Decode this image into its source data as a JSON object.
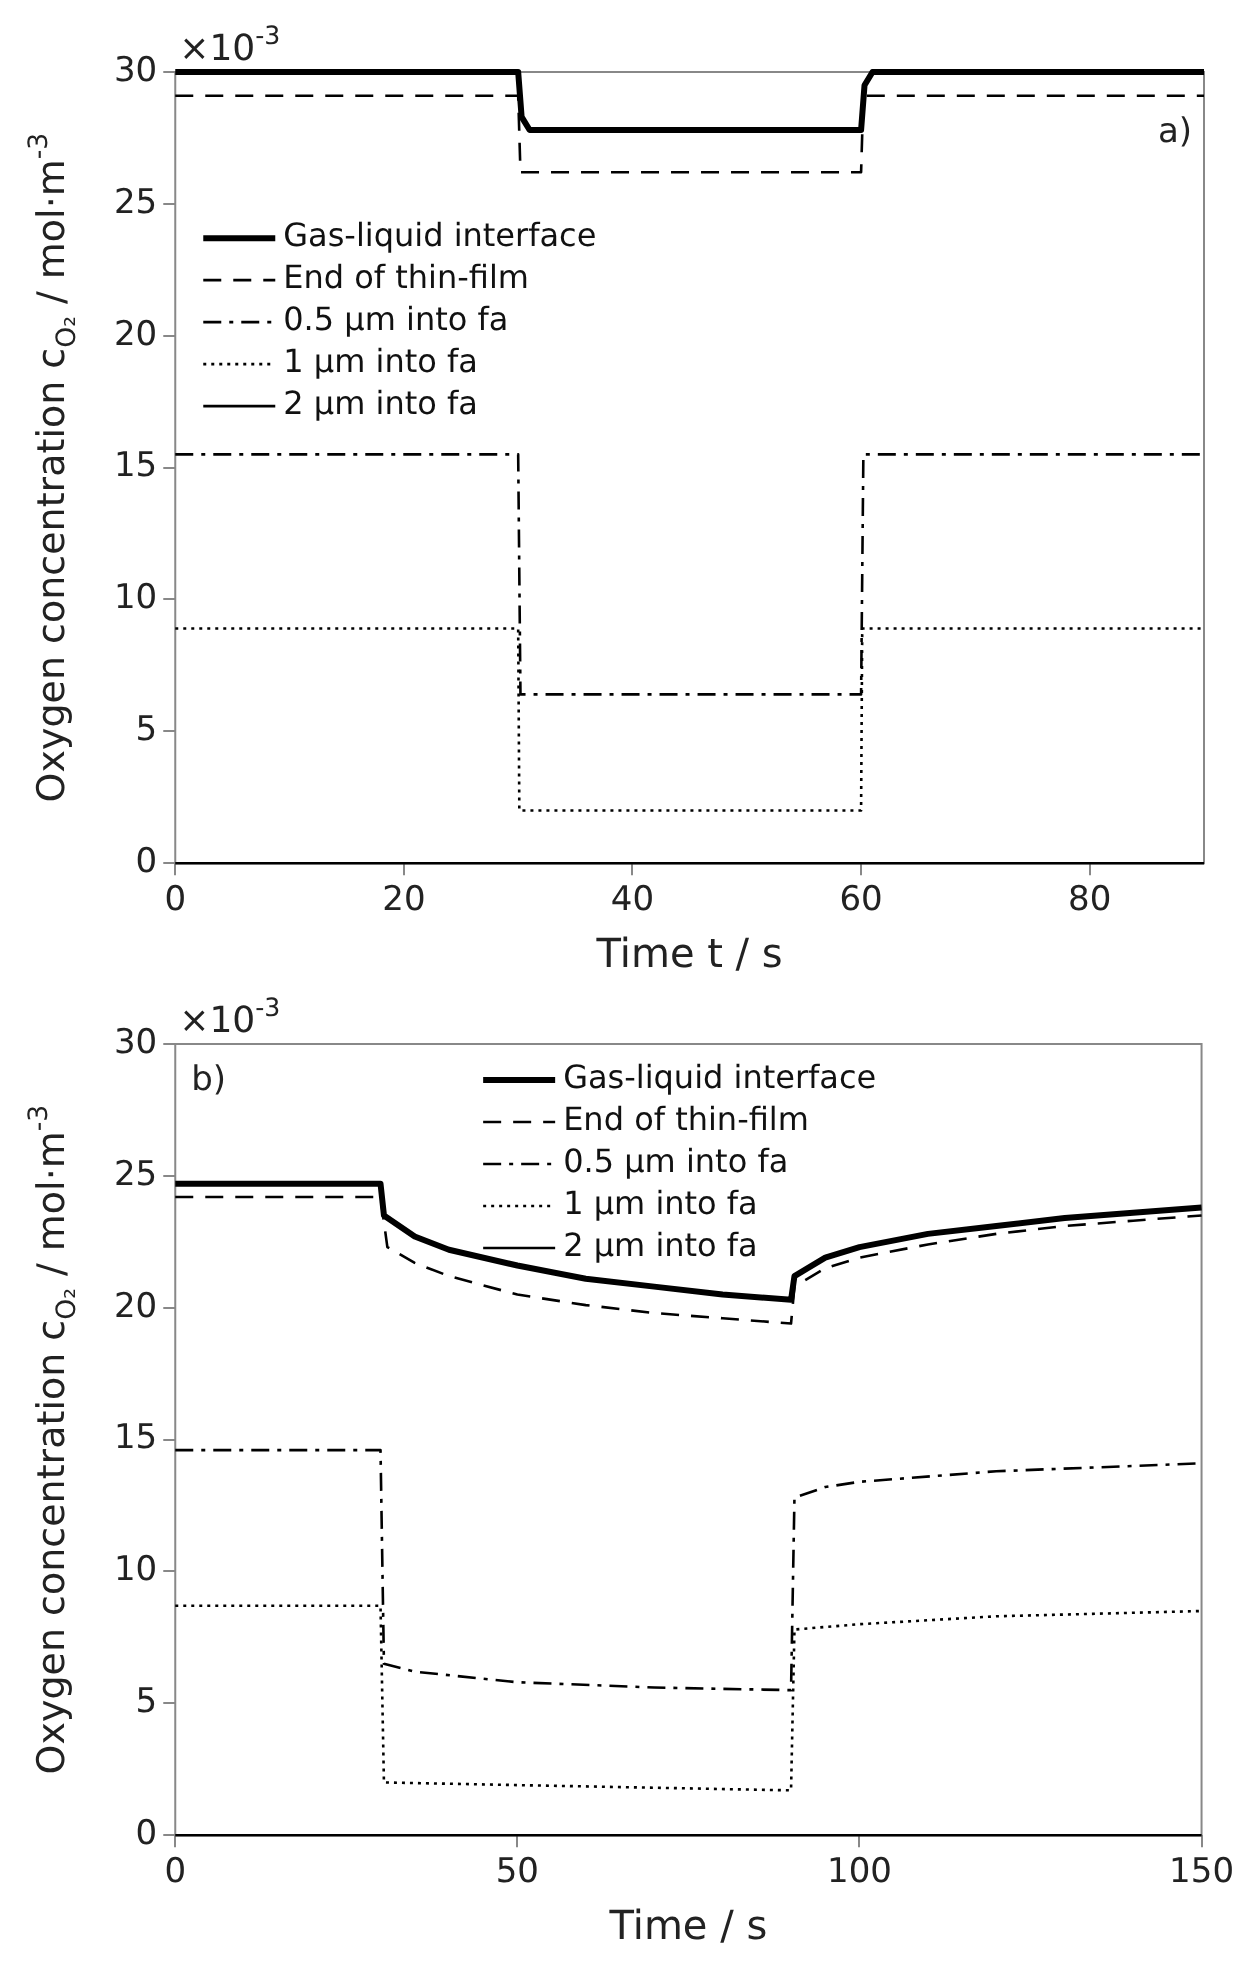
{
  "chart_data": [
    {
      "type": "line",
      "xlabel": "Time t / s",
      "ylabel": "Oxygen concentration c$_{O₂}$ / mol·m$^{-3}$",
      "xlim": [
        0,
        90
      ],
      "xticks": [
        0,
        20,
        40,
        60,
        80
      ],
      "ylim": [
        0,
        30
      ],
      "yticks": [
        0,
        5,
        10,
        15,
        20,
        25,
        30
      ],
      "grid": false,
      "legend": "top left",
      "annotations": [
        "×10$^{-3}$",
        "a)"
      ],
      "series": [
        {
          "name": "Gas-liquid interface",
          "color": "#000000",
          "line_style": "solid",
          "x": [
            0,
            30,
            30.3,
            31,
            60,
            60.3,
            61,
            90
          ],
          "values": [
            30,
            30,
            28.3,
            27.8,
            27.8,
            29.5,
            30,
            30
          ]
        },
        {
          "name": "End of thin-film",
          "color": "#000000",
          "line_style": "dashed",
          "x": [
            0,
            30,
            30.2,
            60,
            60.2,
            90
          ],
          "values": [
            29.1,
            29.1,
            26.2,
            26.2,
            29.1,
            29.1
          ]
        },
        {
          "name": "0.5 µm into fa",
          "color": "#000000",
          "line_style": "dashdot",
          "x": [
            0,
            30,
            30.2,
            60,
            60.2,
            90
          ],
          "values": [
            15.5,
            15.5,
            6.4,
            6.4,
            15.5,
            15.5
          ]
        },
        {
          "name": "1 µm into fa",
          "color": "#000000",
          "line_style": "dotted",
          "x": [
            0,
            30,
            30.1,
            60,
            60.1,
            90
          ],
          "values": [
            8.9,
            8.9,
            2.0,
            2.0,
            8.9,
            8.9
          ]
        },
        {
          "name": "2 µm into fa",
          "color": "#000000",
          "line_style": "solid",
          "x": [
            0,
            90
          ],
          "values": [
            0,
            0
          ]
        }
      ]
    },
    {
      "type": "line",
      "xlabel": "Time / s",
      "ylabel": "Oxygen concentration c$_{O₂}$ / mol·m$^{-3}$",
      "xlim": [
        0,
        150
      ],
      "xticks": [
        0,
        50,
        100,
        150
      ],
      "ylim": [
        0,
        30
      ],
      "yticks": [
        0,
        5,
        10,
        15,
        20,
        25,
        30
      ],
      "grid": false,
      "legend": "top",
      "annotations": [
        "×10$^{-3}$",
        "b)"
      ],
      "series": [
        {
          "name": "Gas-liquid interface",
          "color": "#000000",
          "line_style": "solid",
          "x": [
            0,
            30,
            30.5,
            35,
            40,
            50,
            60,
            70,
            80,
            90,
            90.5,
            95,
            100,
            110,
            120,
            130,
            140,
            150
          ],
          "values": [
            24.7,
            24.7,
            23.5,
            22.7,
            22.2,
            21.6,
            21.1,
            20.8,
            20.5,
            20.3,
            21.2,
            21.9,
            22.3,
            22.8,
            23.1,
            23.4,
            23.6,
            23.8
          ]
        },
        {
          "name": "End of thin-film",
          "color": "#000000",
          "line_style": "dashed",
          "x": [
            0,
            30,
            31,
            35,
            40,
            50,
            60,
            70,
            80,
            90,
            90.5,
            95,
            100,
            110,
            120,
            130,
            140,
            150
          ],
          "values": [
            24.2,
            24.2,
            22.3,
            21.7,
            21.2,
            20.5,
            20.1,
            19.8,
            19.6,
            19.4,
            20.8,
            21.5,
            21.9,
            22.4,
            22.8,
            23.1,
            23.3,
            23.5
          ]
        },
        {
          "name": "0.5 µm into fa",
          "color": "#000000",
          "line_style": "dashdot",
          "x": [
            0,
            30,
            30.5,
            35,
            50,
            70,
            90,
            90.5,
            95,
            100,
            120,
            150
          ],
          "values": [
            14.6,
            14.6,
            6.5,
            6.2,
            5.8,
            5.6,
            5.5,
            12.8,
            13.2,
            13.4,
            13.8,
            14.1
          ]
        },
        {
          "name": "1 µm into fa",
          "color": "#000000",
          "line_style": "dotted",
          "x": [
            0,
            30,
            30.5,
            50,
            70,
            90,
            90.5,
            100,
            120,
            150
          ],
          "values": [
            8.7,
            8.7,
            2.0,
            1.9,
            1.8,
            1.7,
            7.8,
            8.0,
            8.3,
            8.5
          ]
        },
        {
          "name": "2 µm into fa",
          "color": "#000000",
          "line_style": "solid",
          "x": [
            0,
            150
          ],
          "values": [
            0,
            0
          ]
        }
      ]
    }
  ]
}
